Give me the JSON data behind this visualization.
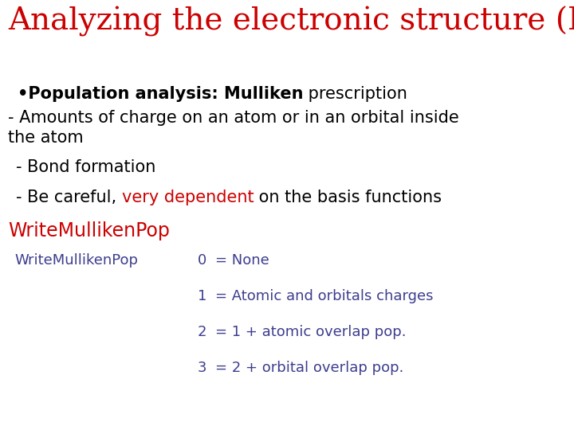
{
  "background_color": "#ffffff",
  "title": "Analyzing the electronic structure (III)",
  "title_color": "#cc0000",
  "title_fontsize": 28,
  "body_color": "#000000",
  "body_fontsize": 15,
  "red_color": "#cc0000",
  "blue_color": "#3d3d8f",
  "keyword_line": "WriteMullikenPop",
  "keyword_fontsize": 17,
  "table_fontsize": 13,
  "table_label": "WriteMullikenPop",
  "table_label_color": "#3d3d8f",
  "table_entries": [
    {
      "num": "0",
      "desc": "= None"
    },
    {
      "num": "1",
      "desc": "= Atomic and orbitals charges"
    },
    {
      "num": "2",
      "desc": "= 1 + atomic overlap pop."
    },
    {
      "num": "3",
      "desc": "= 2 + orbital overlap pop."
    }
  ]
}
